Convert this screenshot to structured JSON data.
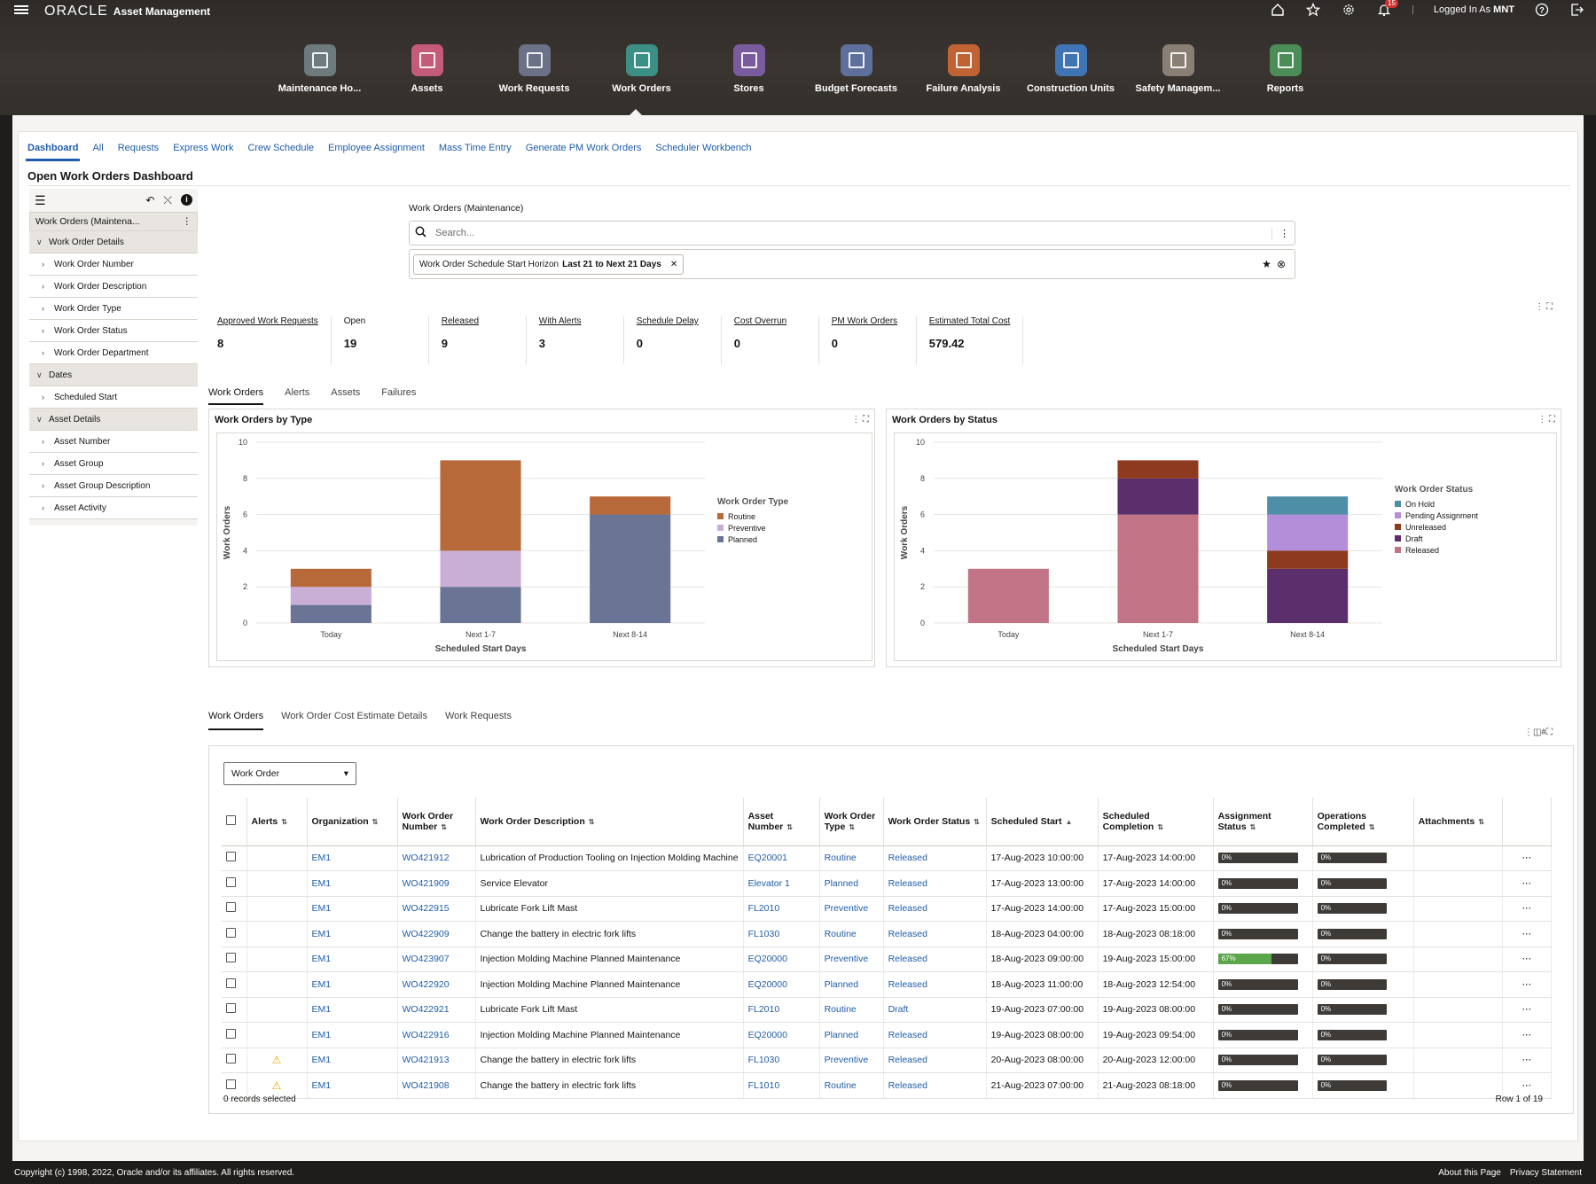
{
  "header": {
    "brand": "ORACLE",
    "app_name": "Asset Management",
    "logged_in": "Logged In As",
    "user": "MNT",
    "notifications": "15"
  },
  "springboard": [
    {
      "label": "Maintenance Ho...",
      "color": "#6d7a7e"
    },
    {
      "label": "Assets",
      "color": "#c45b78"
    },
    {
      "label": "Work Requests",
      "color": "#6b7186"
    },
    {
      "label": "Work Orders",
      "color": "#3b8f85"
    },
    {
      "label": "Stores",
      "color": "#7a5c9e"
    },
    {
      "label": "Budget Forecasts",
      "color": "#5f6f9c"
    },
    {
      "label": "Failure Analysis",
      "color": "#c16234"
    },
    {
      "label": "Construction Units",
      "color": "#3f74b5"
    },
    {
      "label": "Safety Managem...",
      "color": "#8a7f74"
    },
    {
      "label": "Reports",
      "color": "#4a8d57"
    }
  ],
  "tabs": [
    "Dashboard",
    "All",
    "Requests",
    "Express Work",
    "Crew Schedule",
    "Employee Assignment",
    "Mass Time Entry",
    "Generate PM Work Orders",
    "Scheduler Workbench"
  ],
  "dashboard_title": "Open Work Orders Dashboard",
  "left_panel": {
    "header": "Work Orders (Maintena...",
    "items": [
      {
        "label": "Work Order Details",
        "type": "group"
      },
      {
        "label": "Work Order Number",
        "type": "child"
      },
      {
        "label": "Work Order Description",
        "type": "child"
      },
      {
        "label": "Work Order Type",
        "type": "child"
      },
      {
        "label": "Work Order Status",
        "type": "child"
      },
      {
        "label": "Work Order Department",
        "type": "child"
      },
      {
        "label": "Dates",
        "type": "group"
      },
      {
        "label": "Scheduled Start",
        "type": "child"
      },
      {
        "label": "Asset Details",
        "type": "group"
      },
      {
        "label": "Asset Number",
        "type": "child"
      },
      {
        "label": "Asset Group",
        "type": "child"
      },
      {
        "label": "Asset Group Description",
        "type": "child"
      },
      {
        "label": "Asset Activity",
        "type": "child"
      }
    ]
  },
  "search": {
    "label": "Work Orders (Maintenance)",
    "placeholder": "Search...",
    "filter_name": "Work Order Schedule Start Horizon",
    "filter_value": "Last 21 to Next 21 Days"
  },
  "metrics": [
    {
      "label": "Approved Work Requests",
      "value": "8",
      "link": true
    },
    {
      "label": "Open",
      "value": "19",
      "link": false
    },
    {
      "label": "Released",
      "value": "9",
      "link": true
    },
    {
      "label": "With Alerts",
      "value": "3",
      "link": true
    },
    {
      "label": "Schedule Delay",
      "value": "0",
      "link": true
    },
    {
      "label": "Cost Overrun",
      "value": "0",
      "link": true
    },
    {
      "label": "PM Work Orders",
      "value": "0",
      "link": true
    },
    {
      "label": "Estimated Total Cost",
      "value": "579.42",
      "link": true
    }
  ],
  "subtabs": [
    "Work Orders",
    "Alerts",
    "Assets",
    "Failures"
  ],
  "chart_data": [
    {
      "type": "bar",
      "stacked": true,
      "title": "Work Orders by Type",
      "xlabel": "Scheduled Start Days",
      "ylabel": "Work Orders",
      "ylim": [
        0,
        10
      ],
      "yticks": [
        0,
        2,
        4,
        6,
        8,
        10
      ],
      "categories": [
        "Today",
        "Next 1-7",
        "Next 8-14"
      ],
      "legend_title": "Work Order Type",
      "legend_position": "right",
      "series": [
        {
          "name": "Planned",
          "color": "#6a7494",
          "values": [
            1,
            2,
            6
          ]
        },
        {
          "name": "Preventive",
          "color": "#c9aed6",
          "values": [
            1,
            2,
            0
          ]
        },
        {
          "name": "Routine",
          "color": "#b8693a",
          "values": [
            1,
            5,
            1
          ]
        }
      ],
      "legend_order": [
        "Routine",
        "Preventive",
        "Planned"
      ]
    },
    {
      "type": "bar",
      "stacked": true,
      "title": "Work Orders by Status",
      "xlabel": "Scheduled Start Days",
      "ylabel": "Work Orders",
      "ylim": [
        0,
        10
      ],
      "yticks": [
        0,
        2,
        4,
        6,
        8,
        10
      ],
      "categories": [
        "Today",
        "Next 1-7",
        "Next 8-14"
      ],
      "legend_title": "Work Order Status",
      "legend_position": "right",
      "series": [
        {
          "name": "Released",
          "color": "#c07486",
          "values": [
            3,
            6,
            0
          ]
        },
        {
          "name": "Draft",
          "color": "#5a2f6b",
          "values": [
            0,
            2,
            3
          ]
        },
        {
          "name": "Unreleased",
          "color": "#8e3a1e",
          "values": [
            0,
            1,
            1
          ]
        },
        {
          "name": "Pending Assignment",
          "color": "#b28fd8",
          "values": [
            0,
            0,
            2
          ]
        },
        {
          "name": "On Hold",
          "color": "#4e8ea6",
          "values": [
            0,
            0,
            1
          ]
        }
      ],
      "legend_order": [
        "On Hold",
        "Pending Assignment",
        "Unreleased",
        "Draft",
        "Released"
      ]
    }
  ],
  "bottom_tabs": [
    "Work Orders",
    "Work Order Cost Estimate Details",
    "Work Requests"
  ],
  "table": {
    "select_value": "Work Order",
    "columns": [
      "Alerts",
      "Organization",
      "Work Order Number",
      "Work Order Description",
      "Asset Number",
      "Work Order Type",
      "Work Order Status",
      "Scheduled Start",
      "Scheduled Completion",
      "Assignment Status",
      "Operations Completed",
      "Attachments"
    ],
    "rows": [
      {
        "alert": false,
        "org": "EM1",
        "number": "WO421912",
        "desc": "Lubrication of Production Tooling on Injection Molding Machine",
        "asset": "EQ20001",
        "type": "Routine",
        "status": "Released",
        "start": "17-Aug-2023 10:00:00",
        "completion": "17-Aug-2023 14:00:00",
        "assign": "0%",
        "assign_pct": 0,
        "ops": "0%",
        "ops_pct": 0
      },
      {
        "alert": false,
        "org": "EM1",
        "number": "WO421909",
        "desc": "Service Elevator",
        "asset": "Elevator 1",
        "type": "Planned",
        "status": "Released",
        "start": "17-Aug-2023 13:00:00",
        "completion": "17-Aug-2023 14:00:00",
        "assign": "0%",
        "assign_pct": 0,
        "ops": "0%",
        "ops_pct": 0
      },
      {
        "alert": false,
        "org": "EM1",
        "number": "WO422915",
        "desc": "Lubricate Fork Lift Mast",
        "asset": "FL2010",
        "type": "Preventive",
        "status": "Released",
        "start": "17-Aug-2023 14:00:00",
        "completion": "17-Aug-2023 15:00:00",
        "assign": "0%",
        "assign_pct": 0,
        "ops": "0%",
        "ops_pct": 0
      },
      {
        "alert": false,
        "org": "EM1",
        "number": "WO422909",
        "desc": "Change the battery in electric fork lifts",
        "asset": "FL1030",
        "type": "Routine",
        "status": "Released",
        "start": "18-Aug-2023 04:00:00",
        "completion": "18-Aug-2023 08:18:00",
        "assign": "0%",
        "assign_pct": 0,
        "ops": "0%",
        "ops_pct": 0
      },
      {
        "alert": false,
        "org": "EM1",
        "number": "WO423907",
        "desc": "Injection Molding Machine Planned Maintenance",
        "asset": "EQ20000",
        "type": "Preventive",
        "status": "Released",
        "start": "18-Aug-2023 09:00:00",
        "completion": "19-Aug-2023 15:00:00",
        "assign": "67%",
        "assign_pct": 67,
        "ops": "0%",
        "ops_pct": 0
      },
      {
        "alert": false,
        "org": "EM1",
        "number": "WO422920",
        "desc": "Injection Molding Machine Planned Maintenance",
        "asset": "EQ20000",
        "type": "Planned",
        "status": "Released",
        "start": "18-Aug-2023 11:00:00",
        "completion": "18-Aug-2023 12:54:00",
        "assign": "0%",
        "assign_pct": 0,
        "ops": "0%",
        "ops_pct": 0
      },
      {
        "alert": false,
        "org": "EM1",
        "number": "WO422921",
        "desc": "Lubricate Fork Lift Mast",
        "asset": "FL2010",
        "type": "Routine",
        "status": "Draft",
        "start": "19-Aug-2023 07:00:00",
        "completion": "19-Aug-2023 08:00:00",
        "assign": "0%",
        "assign_pct": 0,
        "ops": "0%",
        "ops_pct": 0
      },
      {
        "alert": false,
        "org": "EM1",
        "number": "WO422916",
        "desc": "Injection Molding Machine Planned Maintenance",
        "asset": "EQ20000",
        "type": "Planned",
        "status": "Released",
        "start": "19-Aug-2023 08:00:00",
        "completion": "19-Aug-2023 09:54:00",
        "assign": "0%",
        "assign_pct": 0,
        "ops": "0%",
        "ops_pct": 0
      },
      {
        "alert": true,
        "org": "EM1",
        "number": "WO421913",
        "desc": "Change the battery in electric fork lifts",
        "asset": "FL1030",
        "type": "Preventive",
        "status": "Released",
        "start": "20-Aug-2023 08:00:00",
        "completion": "20-Aug-2023 12:00:00",
        "assign": "0%",
        "assign_pct": 0,
        "ops": "0%",
        "ops_pct": 0
      },
      {
        "alert": true,
        "org": "EM1",
        "number": "WO421908",
        "desc": "Change the battery in electric fork lifts",
        "asset": "FL1010",
        "type": "Routine",
        "status": "Released",
        "start": "21-Aug-2023 07:00:00",
        "completion": "21-Aug-2023 08:18:00",
        "assign": "0%",
        "assign_pct": 0,
        "ops": "0%",
        "ops_pct": 0
      }
    ],
    "selected_text": "0 records selected",
    "row_info": "Row 1 of 19"
  },
  "footer": {
    "copyright": "Copyright (c) 1998, 2022, Oracle and/or its affiliates. All rights reserved.",
    "about": "About this Page",
    "privacy": "Privacy Statement"
  }
}
